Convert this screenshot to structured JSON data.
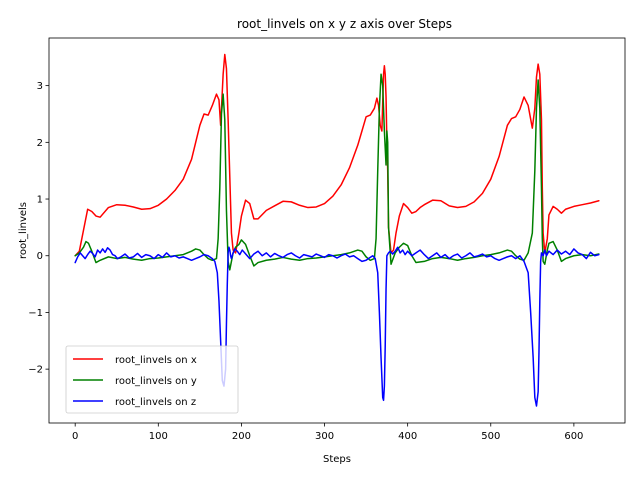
{
  "chart_data": {
    "type": "line",
    "title": "root_linvels on x y z axis over Steps",
    "xlabel": "Steps",
    "ylabel": "root_linvels",
    "xlim": [
      -31.5,
      661.5
    ],
    "ylim": [
      -2.95,
      3.84
    ],
    "xticks": [
      0,
      100,
      200,
      300,
      400,
      500,
      600
    ],
    "xtick_labels": [
      "0",
      "100",
      "200",
      "300",
      "400",
      "500",
      "600"
    ],
    "yticks": [
      -2,
      -1,
      0,
      1,
      2,
      3
    ],
    "ytick_labels": [
      "−2",
      "−1",
      "0",
      "1",
      "2",
      "3"
    ],
    "grid": false,
    "legend_position": "lower-left",
    "series": [
      {
        "name": "root_linvels on x",
        "color": "#ff0000",
        "x": [
          0,
          5,
          10,
          15,
          20,
          25,
          30,
          40,
          50,
          60,
          70,
          80,
          90,
          100,
          110,
          120,
          130,
          140,
          145,
          150,
          155,
          160,
          165,
          170,
          173,
          175,
          178,
          180,
          182,
          184,
          186,
          188,
          190,
          193,
          197,
          200,
          205,
          210,
          215,
          220,
          230,
          240,
          250,
          260,
          270,
          280,
          290,
          300,
          310,
          320,
          330,
          340,
          345,
          350,
          355,
          360,
          363,
          365,
          367,
          369,
          370,
          371,
          372,
          373,
          374,
          375,
          376,
          377,
          380,
          383,
          386,
          390,
          395,
          400,
          405,
          410,
          415,
          420,
          430,
          440,
          450,
          460,
          470,
          480,
          490,
          500,
          510,
          520,
          525,
          530,
          535,
          540,
          545,
          550,
          553,
          555,
          557,
          559,
          561,
          562,
          563,
          565,
          568,
          570,
          575,
          580,
          585,
          590,
          600,
          610,
          620,
          630
        ],
        "y": [
          0.0,
          0.08,
          0.45,
          0.82,
          0.78,
          0.7,
          0.68,
          0.85,
          0.9,
          0.89,
          0.86,
          0.82,
          0.83,
          0.89,
          1.0,
          1.15,
          1.35,
          1.7,
          2.0,
          2.3,
          2.5,
          2.48,
          2.65,
          2.85,
          2.75,
          2.3,
          3.2,
          3.55,
          3.3,
          2.4,
          1.4,
          0.4,
          0.1,
          0.05,
          0.4,
          0.7,
          0.98,
          0.92,
          0.65,
          0.65,
          0.8,
          0.88,
          0.96,
          0.95,
          0.89,
          0.85,
          0.86,
          0.92,
          1.05,
          1.25,
          1.55,
          1.95,
          2.2,
          2.45,
          2.48,
          2.6,
          2.78,
          2.65,
          2.3,
          2.2,
          2.7,
          3.2,
          3.35,
          3.2,
          2.8,
          2.0,
          1.5,
          0.5,
          0.05,
          0.1,
          0.4,
          0.7,
          0.92,
          0.85,
          0.75,
          0.78,
          0.85,
          0.9,
          0.98,
          0.97,
          0.88,
          0.85,
          0.87,
          0.95,
          1.1,
          1.35,
          1.75,
          2.3,
          2.42,
          2.45,
          2.58,
          2.8,
          2.65,
          2.25,
          2.6,
          3.15,
          3.38,
          3.2,
          2.4,
          1.2,
          0.4,
          0.05,
          0.3,
          0.72,
          0.87,
          0.82,
          0.75,
          0.82,
          0.87,
          0.9,
          0.93,
          0.97
        ]
      },
      {
        "name": "root_linvels on y",
        "color": "#008000",
        "x": [
          0,
          5,
          10,
          13,
          16,
          20,
          25,
          30,
          40,
          50,
          60,
          70,
          80,
          90,
          100,
          110,
          120,
          130,
          140,
          145,
          150,
          155,
          160,
          165,
          170,
          172,
          174,
          176,
          178,
          180,
          182,
          184,
          186,
          188,
          190,
          193,
          197,
          200,
          205,
          210,
          215,
          220,
          230,
          240,
          250,
          260,
          270,
          280,
          290,
          300,
          310,
          320,
          330,
          340,
          345,
          350,
          355,
          360,
          362,
          364,
          366,
          368,
          370,
          372,
          374,
          375,
          376,
          377,
          380,
          385,
          390,
          395,
          400,
          405,
          410,
          420,
          430,
          440,
          450,
          460,
          470,
          480,
          490,
          500,
          510,
          520,
          525,
          530,
          535,
          540,
          545,
          550,
          553,
          555,
          557,
          559,
          561,
          562,
          563,
          565,
          568,
          570,
          575,
          580,
          585,
          590,
          600,
          610,
          620,
          630
        ],
        "y": [
          0.0,
          0.05,
          0.15,
          0.25,
          0.22,
          0.08,
          -0.12,
          -0.08,
          -0.02,
          -0.05,
          -0.03,
          -0.06,
          -0.08,
          -0.05,
          -0.04,
          -0.02,
          0.0,
          0.02,
          0.08,
          0.12,
          0.1,
          0.02,
          -0.05,
          -0.08,
          -0.05,
          0.3,
          1.2,
          2.5,
          2.85,
          2.4,
          0.8,
          -0.1,
          -0.25,
          -0.1,
          0.05,
          0.15,
          0.2,
          0.28,
          0.2,
          0.0,
          -0.18,
          -0.12,
          -0.08,
          -0.06,
          -0.03,
          -0.06,
          -0.08,
          -0.05,
          -0.04,
          -0.02,
          0.0,
          0.02,
          0.05,
          0.1,
          0.08,
          -0.02,
          -0.08,
          -0.05,
          0.3,
          1.5,
          2.6,
          3.2,
          3.0,
          2.2,
          1.6,
          2.2,
          2.0,
          0.5,
          -0.15,
          0.05,
          0.15,
          0.22,
          0.18,
          0.0,
          -0.12,
          -0.1,
          -0.05,
          -0.03,
          -0.05,
          -0.08,
          -0.05,
          -0.03,
          0.0,
          0.02,
          0.05,
          0.1,
          0.08,
          0.0,
          -0.06,
          -0.08,
          0.05,
          0.4,
          1.5,
          2.6,
          3.1,
          2.6,
          1.2,
          0.3,
          -0.1,
          -0.15,
          0.1,
          0.22,
          0.25,
          0.1,
          -0.1,
          -0.05,
          0.0,
          0.02,
          0.0,
          0.03
        ]
      },
      {
        "name": "root_linvels on z",
        "color": "#0000ff",
        "x": [
          0,
          3,
          6,
          9,
          12,
          15,
          18,
          21,
          24,
          27,
          30,
          33,
          36,
          39,
          42,
          45,
          48,
          51,
          55,
          60,
          65,
          70,
          75,
          80,
          85,
          90,
          95,
          100,
          105,
          110,
          115,
          120,
          125,
          130,
          135,
          140,
          145,
          150,
          155,
          160,
          165,
          168,
          171,
          173,
          175,
          177,
          179,
          181,
          182,
          183,
          184,
          185,
          186,
          187,
          188,
          190,
          192,
          195,
          198,
          201,
          204,
          207,
          210,
          215,
          220,
          225,
          230,
          235,
          240,
          245,
          250,
          255,
          260,
          265,
          270,
          275,
          280,
          285,
          290,
          295,
          300,
          305,
          310,
          315,
          320,
          325,
          330,
          335,
          340,
          345,
          350,
          355,
          358,
          361,
          364,
          366,
          368,
          370,
          371,
          372,
          373,
          374,
          375,
          377,
          379,
          382,
          385,
          388,
          391,
          394,
          397,
          400,
          405,
          410,
          415,
          420,
          425,
          430,
          435,
          440,
          445,
          450,
          455,
          460,
          465,
          470,
          475,
          480,
          485,
          490,
          495,
          500,
          505,
          510,
          515,
          520,
          525,
          530,
          535,
          540,
          545,
          548,
          551,
          553,
          555,
          557,
          558,
          559,
          560,
          561,
          562,
          563,
          564,
          565,
          567,
          570,
          575,
          580,
          585,
          590,
          595,
          600,
          605,
          610,
          615,
          620,
          625,
          630
        ],
        "y": [
          -0.12,
          -0.02,
          0.05,
          0.0,
          -0.05,
          0.02,
          0.08,
          0.04,
          -0.02,
          0.1,
          0.05,
          0.12,
          0.06,
          0.14,
          0.1,
          0.02,
          0.0,
          -0.05,
          -0.02,
          0.03,
          -0.04,
          -0.02,
          0.04,
          -0.03,
          0.02,
          0.0,
          -0.05,
          0.02,
          -0.03,
          0.05,
          -0.02,
          0.0,
          -0.04,
          -0.02,
          -0.05,
          -0.08,
          -0.05,
          -0.02,
          0.02,
          0.0,
          -0.05,
          -0.1,
          -0.3,
          -0.8,
          -1.5,
          -2.2,
          -2.3,
          -2.0,
          -1.2,
          -0.5,
          0.05,
          0.15,
          0.1,
          0.0,
          -0.05,
          0.05,
          0.12,
          0.08,
          0.02,
          0.1,
          0.05,
          0.0,
          -0.05,
          0.03,
          0.08,
          0.0,
          0.05,
          -0.02,
          0.04,
          0.0,
          -0.03,
          0.02,
          0.05,
          0.0,
          -0.04,
          0.02,
          0.0,
          -0.02,
          0.03,
          0.0,
          -0.03,
          0.02,
          0.0,
          -0.04,
          0.0,
          0.03,
          -0.02,
          0.0,
          -0.05,
          -0.1,
          -0.08,
          -0.03,
          0.0,
          -0.05,
          -0.3,
          -1.0,
          -1.8,
          -2.5,
          -2.55,
          -2.3,
          -1.6,
          -0.6,
          0.0,
          0.05,
          0.08,
          0.03,
          0.08,
          0.15,
          0.05,
          0.1,
          0.02,
          0.08,
          0.0,
          0.05,
          0.1,
          0.02,
          -0.05,
          0.0,
          0.05,
          -0.03,
          0.02,
          -0.05,
          0.0,
          0.03,
          -0.04,
          0.0,
          0.05,
          -0.02,
          0.0,
          0.03,
          -0.02,
          0.0,
          -0.05,
          -0.08,
          -0.05,
          -0.02,
          0.0,
          -0.05,
          0.0,
          -0.1,
          -0.3,
          -1.0,
          -1.8,
          -2.5,
          -2.65,
          -2.4,
          -1.7,
          -0.8,
          -0.1,
          0.05,
          0.03,
          0.0,
          0.05,
          0.1,
          0.0,
          0.08,
          0.02,
          0.1,
          0.03,
          0.08,
          0.02,
          0.12,
          0.05,
          0.02,
          -0.05,
          0.06,
          0.0,
          0.02
        ]
      }
    ]
  }
}
